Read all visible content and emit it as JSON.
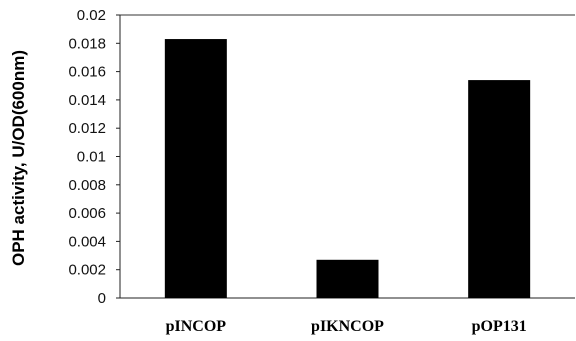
{
  "chart_data": {
    "type": "bar",
    "title": "",
    "xlabel": "",
    "ylabel": "OPH activity, U/OD(600nm)",
    "categories": [
      "pINCOP",
      "pIKNCOP",
      "pOP131"
    ],
    "values": [
      0.0183,
      0.0027,
      0.0154
    ],
    "ylim": [
      0,
      0.02
    ],
    "yticks": [
      "0",
      "0.002",
      "0.004",
      "0.006",
      "0.008",
      "0.01",
      "0.012",
      "0.014",
      "0.016",
      "0.018",
      "0.02"
    ],
    "grid": "top line only",
    "legend": "none",
    "bar_color": "#000000"
  }
}
